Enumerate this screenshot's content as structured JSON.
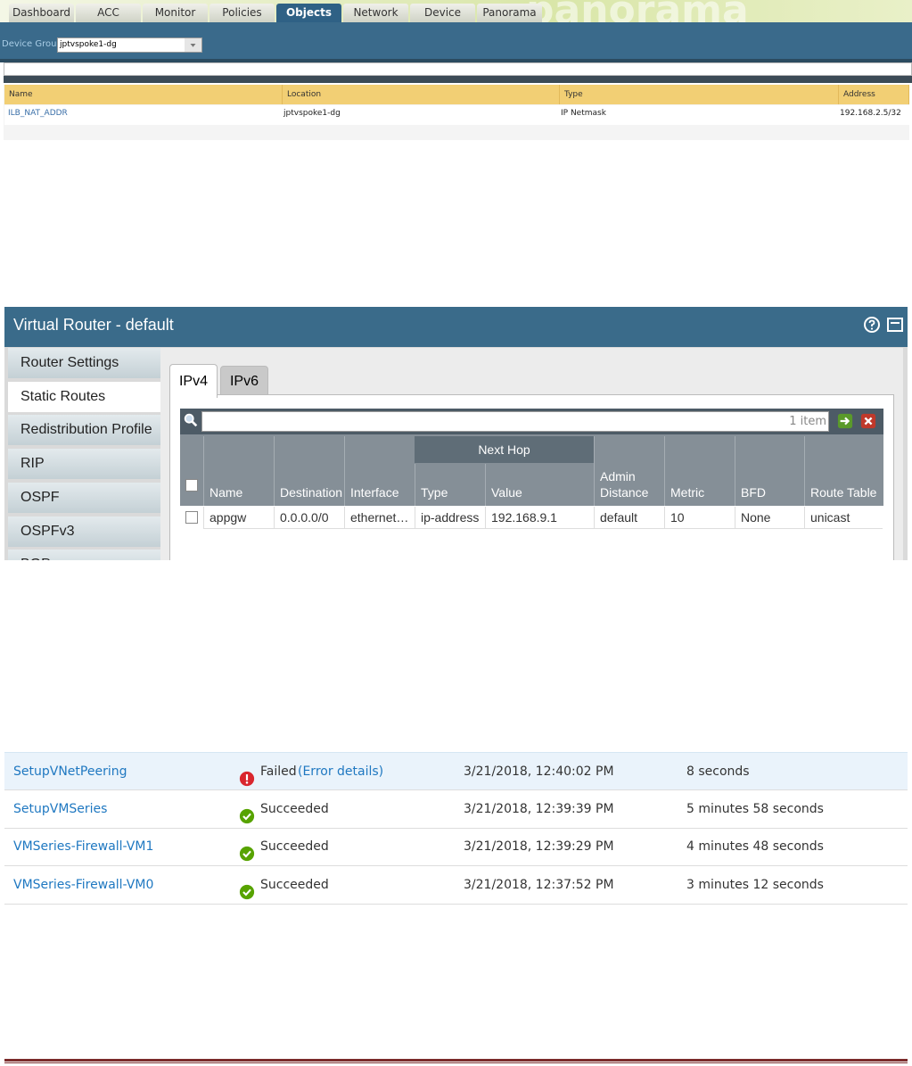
{
  "panorama": {
    "logo": "panorama",
    "tabs": [
      "Dashboard",
      "ACC",
      "Monitor",
      "Policies",
      "Objects",
      "Network",
      "Device",
      "Panorama"
    ],
    "device_group_label": "Device Group",
    "device_group": "jptvspoke1-dg",
    "table": {
      "columns": [
        "Name",
        "Location",
        "Type",
        "Address"
      ],
      "rows": [
        [
          "ILB_NAT_ADDR",
          "jptvspoke1-dg",
          "IP Netmask",
          "192.168.2.5/32"
        ]
      ]
    }
  },
  "virtual_router": {
    "title": "Virtual Router - default",
    "menu": [
      "Router Settings",
      "Static Routes",
      "Redistribution Profile",
      "RIP",
      "OSPF",
      "OSPFv3",
      "BGP"
    ],
    "tabs": [
      "IPv4",
      "IPv6"
    ],
    "item_count": "1 item",
    "group_header": "Next Hop",
    "columns": [
      "Name",
      "Destination",
      "Interface",
      "Type",
      "Value",
      "Admin Distance",
      "Metric",
      "BFD",
      "Route Table"
    ],
    "rows": [
      [
        "appgw",
        "0.0.0.0/0",
        "ethernet…",
        "ip-address",
        "192.168.9.1",
        "default",
        10,
        "None",
        "unicast"
      ]
    ]
  },
  "deployments": {
    "rows": [
      {
        "name": "SetupVNetPeering",
        "status": "Failed",
        "link": "(Error details)",
        "timestamp": "3/21/2018, 12:40:02 PM",
        "duration": "8 seconds"
      },
      {
        "name": "SetupVMSeries",
        "status": "Succeeded",
        "timestamp": "3/21/2018, 12:39:39 PM",
        "duration": "5 minutes 58 seconds"
      },
      {
        "name": "VMSeries-Firewall-VM1",
        "status": "Succeeded",
        "timestamp": "3/21/2018, 12:39:29 PM",
        "duration": "4 minutes 48 seconds"
      },
      {
        "name": "VMSeries-Firewall-VM0",
        "status": "Succeeded",
        "timestamp": "3/21/2018, 12:37:52 PM",
        "duration": "3 minutes 12 seconds"
      }
    ]
  }
}
